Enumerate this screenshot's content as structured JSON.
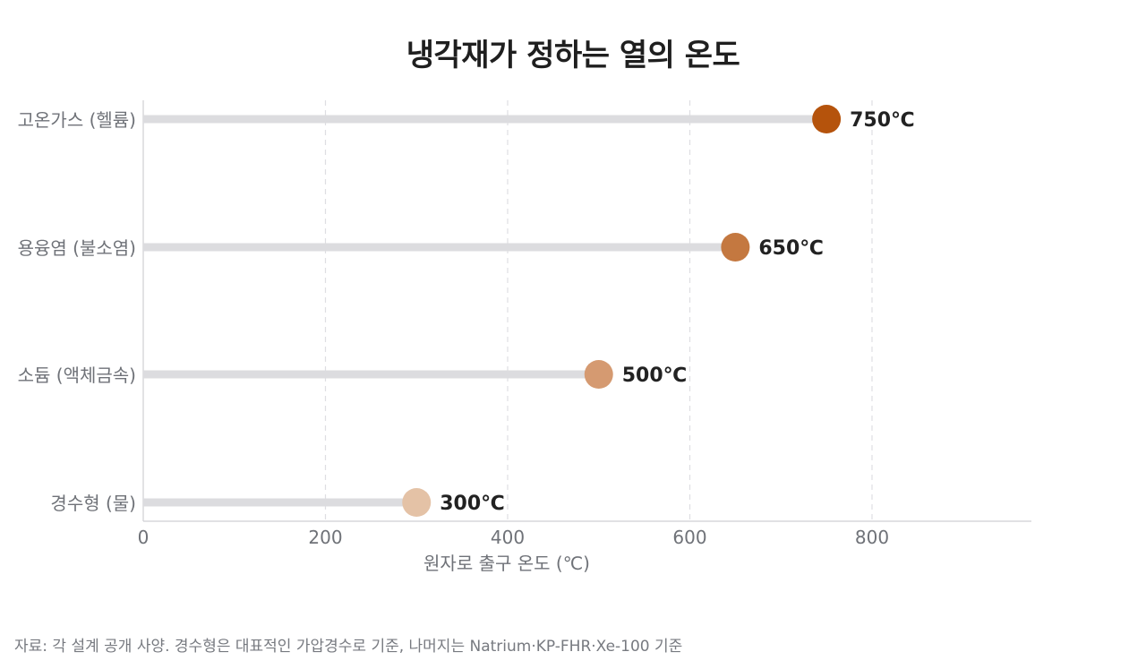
{
  "chart_data": {
    "type": "lollipop",
    "orientation": "horizontal",
    "title": "냉각재가 정하는 열의 온도",
    "xlabel": "원자로 출구 온도 (℃)",
    "ylabel": "",
    "xlim": [
      0,
      965
    ],
    "xticks": [
      "0",
      "200",
      "400",
      "600",
      "800"
    ],
    "grid": "x-dashed",
    "categories": [
      "고온가스 (헬륨)",
      "용융염 (불소염)",
      "소듐 (액체금속)",
      "경수형 (물)"
    ],
    "values": [
      750,
      650,
      500,
      300
    ],
    "value_labels": [
      "750℃",
      "650℃",
      "500℃",
      "300℃"
    ],
    "colors": [
      "#b5530c",
      "#c47840",
      "#d59a71",
      "#e4c2a6"
    ],
    "stem_color": "#dcdcdf"
  },
  "source": "자료: 각 설계 공개 사양. 경수형은 대표적인 가압경수로 기준, 나머지는 Natrium·KP-FHR·Xe-100 기준"
}
